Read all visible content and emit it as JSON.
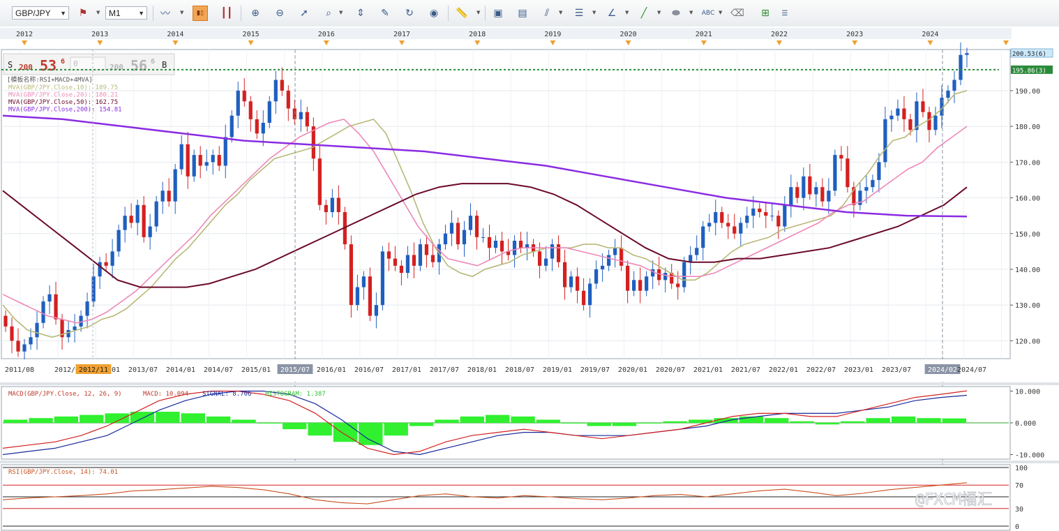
{
  "toolbar": {
    "symbol": "GBP/JPY",
    "timeframe": "M1",
    "icons": [
      "line-chart-icon",
      "bar-chart-icon",
      "candle-chart-icon",
      "indicator-icon",
      "zoom-in-icon",
      "zoom-out-icon",
      "pointer-icon",
      "zoom-box-icon",
      "fit-icon",
      "edit-icon",
      "refresh-icon",
      "globe-icon",
      "ruler-icon",
      "picture-icon",
      "panels-icon",
      "fibonacci-icon",
      "lines-icon",
      "trend-icon",
      "pen-icon",
      "ellipse-icon",
      "text-icon",
      "eraser-icon",
      "hierarchy-icon",
      "settings-icon"
    ]
  },
  "quote": {
    "sell_label": "S",
    "sell_prefix": "200",
    "sell_big": "53",
    "sell_sup": "6",
    "amount": "0",
    "buy_prefix": "200",
    "buy_big": "56",
    "buy_sup": "6",
    "buy_label": "B"
  },
  "watermark": "@FXCM福汇",
  "chart_data": {
    "type": "candlestick",
    "symbol": "GBP/JPY",
    "timeframe": "M1",
    "template_label": "[模板名称:RSI+MACD+4MVA]",
    "price_axis": {
      "ylim": [
        115,
        201.5
      ],
      "ticks": [
        "190.00",
        "180.00",
        "170.00",
        "160.00",
        "150.00",
        "140.00",
        "130.00",
        "120.00"
      ]
    },
    "last_price_label": "200.53(6)",
    "horizontal_line_label": "195.86(3)",
    "year_labels": [
      "2012",
      "2013",
      "2014",
      "2015",
      "2016",
      "2017",
      "2018",
      "2019",
      "2020",
      "2021",
      "2022",
      "2023",
      "2024"
    ],
    "date_labels": [
      "2011/08",
      "2012/0",
      "2012/11",
      "01",
      "2013/07",
      "2014/01",
      "2014/07",
      "2015/01",
      "2015/07",
      "2016/01",
      "2016/07",
      "2017/01",
      "2017/07",
      "2018/01",
      "2018/07",
      "2019/01",
      "2019/07",
      "2020/01",
      "2020/07",
      "2021/01",
      "2021/07",
      "2022/01",
      "2022/07",
      "2023/01",
      "2023/07",
      "2024/02",
      "2024/07"
    ],
    "highlighted_dates": [
      "2012/11",
      "2015/07",
      "2024/02"
    ],
    "legend": [
      {
        "text": "MVA(GBP/JPY.Close,10): 189.75",
        "color": "#b8b878"
      },
      {
        "text": "MVA(GBP/JPY.Close,20): 180.21",
        "color": "#ee88b8"
      },
      {
        "text": "MVA(GBP/JPY.Close,50): 162.75",
        "color": "#6b0a2a"
      },
      {
        "text": "MVA(GBP/JPY.Close,200): 154.81",
        "color": "#8a2be2"
      }
    ],
    "candles_close": [
      124,
      120,
      117,
      119,
      121,
      125,
      131,
      133,
      126,
      121,
      123,
      124,
      127,
      131,
      138,
      142,
      141,
      145,
      151,
      155,
      153,
      158,
      149,
      152,
      159,
      162,
      159,
      168,
      175,
      166,
      172,
      169,
      170,
      172,
      169,
      177,
      183,
      190,
      187,
      182,
      178,
      181,
      187,
      193,
      190,
      185,
      182,
      184,
      180,
      171,
      158,
      156,
      160,
      156,
      147,
      130,
      135,
      138,
      127,
      130,
      145,
      143,
      141,
      139,
      144,
      141,
      147,
      144,
      142,
      147,
      150,
      153,
      147,
      151,
      155,
      149,
      149,
      146,
      148,
      145,
      144,
      148,
      146,
      147,
      145,
      141,
      143,
      147,
      142,
      135,
      138,
      134,
      130,
      136,
      140,
      141,
      144,
      146,
      141,
      134,
      137,
      134,
      138,
      140,
      137,
      139,
      136,
      135,
      142,
      144,
      146,
      152,
      153,
      156,
      153,
      152,
      150,
      153,
      155,
      157,
      156,
      155,
      155,
      152,
      158,
      163,
      160,
      166,
      161,
      163,
      159,
      162,
      172,
      171,
      163,
      158,
      162,
      163,
      165,
      170,
      182,
      183,
      185,
      182,
      179,
      187,
      184,
      179,
      183,
      188,
      190,
      193,
      200,
      200.5
    ],
    "moving_averages": [
      {
        "name": "MVA 10",
        "color": "#b8b878",
        "values": [
          130,
          126,
          123,
          122,
          121,
          122,
          123,
          124,
          126,
          127,
          129,
          132,
          135,
          139,
          143,
          146,
          150,
          154,
          158,
          161,
          165,
          168,
          171,
          172,
          173,
          174,
          176,
          178,
          180,
          181,
          182,
          178,
          170,
          162,
          153,
          146,
          141,
          139,
          138,
          140,
          141,
          142,
          144,
          145,
          146,
          146,
          146,
          147,
          147,
          146,
          146,
          144,
          143,
          141,
          139,
          137,
          137,
          139,
          142,
          145,
          147,
          148,
          149,
          151,
          152,
          153,
          154,
          155,
          158,
          163,
          167,
          172,
          176,
          177,
          180,
          182,
          185,
          189,
          190
        ]
      },
      {
        "name": "MVA 20",
        "color": "#ee88b8",
        "values": [
          133,
          131,
          129,
          127,
          126,
          125,
          126,
          128,
          131,
          134,
          138,
          142,
          146,
          150,
          155,
          159,
          163,
          167,
          171,
          174,
          177,
          179,
          181,
          182,
          178,
          173,
          166,
          159,
          152,
          147,
          143,
          142,
          141,
          143,
          145,
          146,
          146,
          146,
          146,
          145,
          144,
          143,
          142,
          141,
          139,
          138,
          138,
          138,
          139,
          141,
          143,
          145,
          147,
          149,
          151,
          153,
          156,
          158,
          159,
          162,
          165,
          168,
          170,
          174,
          177,
          180
        ]
      },
      {
        "name": "MVA 50",
        "color": "#6b0a2a",
        "values": [
          162,
          157,
          152,
          147,
          142,
          137,
          135,
          135,
          135,
          136,
          138,
          140,
          143,
          146,
          149,
          152,
          155,
          158,
          161,
          163,
          164,
          164,
          164,
          163,
          161,
          158,
          154,
          150,
          146,
          143,
          142,
          142,
          143,
          143,
          144,
          145,
          146,
          148,
          150,
          152,
          155,
          158,
          163
        ]
      },
      {
        "name": "MVA 200",
        "color": "#8a2be2",
        "values": [
          183,
          182,
          180,
          178,
          176,
          175,
          174,
          173,
          171,
          169,
          166,
          163,
          160,
          158,
          156,
          155,
          154.8
        ]
      }
    ],
    "macd": {
      "label_series": "MACD(GBP/JPY.Close, 12, 26, 9)",
      "label_macd": "MACD: 10.094",
      "label_signal": "SIGNAL: 8.706",
      "label_hist": "HISTOGRAM: 1.387",
      "ticks": [
        "10.000",
        "0.000",
        "-10.000"
      ],
      "ylim": [
        -11,
        11
      ],
      "macd_values": [
        -8,
        -7,
        -6,
        -4,
        -1,
        3,
        7,
        9,
        10,
        10,
        9,
        7,
        3,
        -3,
        -8,
        -10,
        -9,
        -6,
        -4,
        -3,
        -2,
        -3,
        -4,
        -5,
        -4,
        -3,
        -2,
        0,
        2,
        3,
        3,
        2,
        2,
        4,
        6,
        8,
        9,
        10.1
      ],
      "signal_values": [
        -10,
        -9,
        -8,
        -6,
        -4,
        0,
        4,
        7,
        9,
        10,
        10,
        9,
        6,
        1,
        -5,
        -9,
        -10,
        -8,
        -6,
        -4,
        -3,
        -3,
        -4,
        -4,
        -4,
        -3,
        -2,
        -1,
        1,
        2,
        3,
        3,
        3,
        4,
        5,
        7,
        8,
        8.7
      ],
      "histogram": [
        1,
        1.5,
        2,
        2.5,
        3,
        3.5,
        3.5,
        3,
        2,
        1,
        0,
        -2,
        -4,
        -6,
        -7,
        -4,
        -1,
        1,
        2,
        2.5,
        2,
        1,
        0,
        -1,
        -1,
        0,
        0.5,
        1,
        1.5,
        2,
        1.5,
        0.5,
        -0.5,
        0.5,
        1.5,
        2,
        1.5,
        1.4
      ]
    },
    "rsi": {
      "label": "RSI(GBP/JPY.Close, 14): 74.01",
      "ticks": [
        "100",
        "70",
        "30",
        "0"
      ],
      "ylim": [
        0,
        100
      ],
      "levels": [
        70,
        50,
        30
      ],
      "values": [
        45,
        48,
        50,
        52,
        55,
        60,
        62,
        65,
        68,
        66,
        62,
        55,
        45,
        40,
        38,
        45,
        52,
        55,
        50,
        48,
        52,
        50,
        47,
        45,
        48,
        52,
        54,
        50,
        55,
        60,
        63,
        58,
        52,
        56,
        62,
        66,
        70,
        74
      ]
    }
  }
}
